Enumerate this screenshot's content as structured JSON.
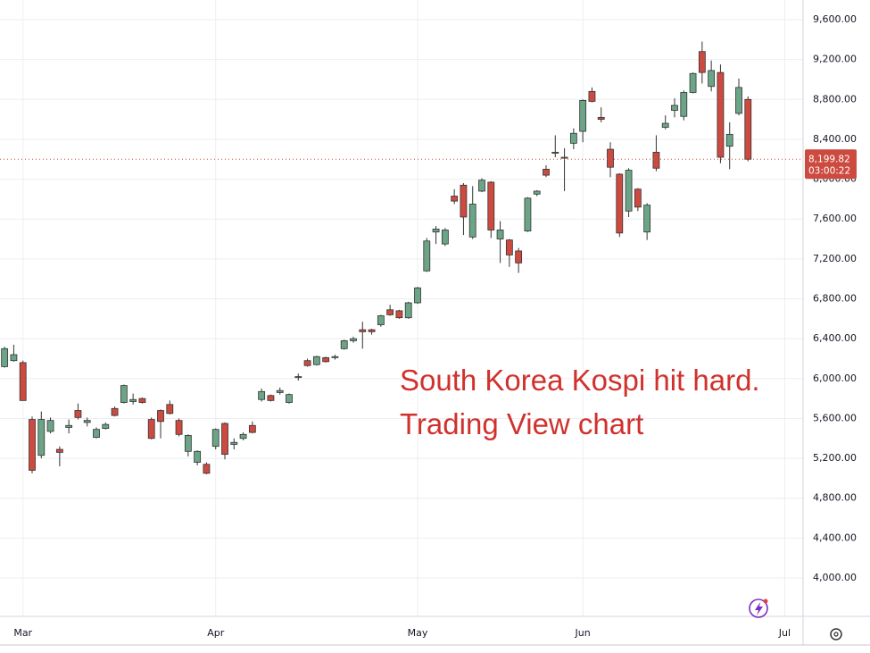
{
  "chart_data": {
    "type": "candlestick",
    "annotations": [
      "South Korea Kospi hit hard.",
      "Trading View chart"
    ],
    "up_color": "#6ba486",
    "down_color": "#cc4a3f",
    "grid": true,
    "xlim": [
      -0.5,
      87
    ],
    "xticks": [
      {
        "value": 2,
        "label": "Mar"
      },
      {
        "value": 23,
        "label": "Apr"
      },
      {
        "value": 45,
        "label": "May"
      },
      {
        "value": 63,
        "label": "Jun"
      },
      {
        "value": 85,
        "label": "Jul"
      }
    ],
    "ylim": [
      3615,
      9797
    ],
    "yticks": [
      {
        "value": 4000,
        "label": "4,000.00"
      },
      {
        "value": 4400,
        "label": "4,400.00"
      },
      {
        "value": 4800,
        "label": "4,800.00"
      },
      {
        "value": 5200,
        "label": "5,200.00"
      },
      {
        "value": 5600,
        "label": "5,600.00"
      },
      {
        "value": 6000,
        "label": "6,000.00"
      },
      {
        "value": 6400,
        "label": "6,400.00"
      },
      {
        "value": 6800,
        "label": "6,800.00"
      },
      {
        "value": 7200,
        "label": "7,200.00"
      },
      {
        "value": 7600,
        "label": "7,600.00"
      },
      {
        "value": 8000,
        "label": "8,000.00"
      },
      {
        "value": 8400,
        "label": "8,400.00"
      },
      {
        "value": 8800,
        "label": "8,800.00"
      },
      {
        "value": 9200,
        "label": "9,200.00"
      },
      {
        "value": 9600,
        "label": "9,600.00"
      }
    ],
    "last_price": {
      "value": 8199.82,
      "label": "8,199.82"
    },
    "countdown": "03:00:22",
    "open": [
      6120,
      6180,
      6160,
      5590,
      5230,
      5470,
      5290,
      5510,
      5680,
      5560,
      5410,
      5500,
      5700,
      5760,
      5770,
      5800,
      5590,
      5680,
      5740,
      5580,
      5270,
      5160,
      5140,
      5320,
      5550,
      5340,
      5400,
      5530,
      5790,
      5830,
      5860,
      5760,
      6010,
      6180,
      6140,
      6210,
      6210,
      6300,
      6380,
      6490,
      6490,
      6540,
      6690,
      6680,
      6610,
      6760,
      7080,
      7470,
      7350,
      7830,
      7940,
      7420,
      7880,
      7970,
      7400,
      7390,
      7280,
      7480,
      7850,
      8100,
      8260,
      8210,
      8360,
      8480,
      8880,
      8620,
      8300,
      8050,
      7680,
      7900,
      7470,
      8270,
      8520,
      8690,
      8630,
      8870,
      9280,
      8930,
      9070,
      8330,
      8660,
      8800
    ],
    "high": [
      6320,
      6340,
      6180,
      5620,
      5670,
      5610,
      5320,
      5590,
      5750,
      5610,
      5510,
      5560,
      5720,
      5940,
      5850,
      5810,
      5610,
      5690,
      5780,
      5600,
      5440,
      5280,
      5160,
      5500,
      5560,
      5400,
      5460,
      5570,
      5900,
      5840,
      5910,
      5850,
      6050,
      6200,
      6230,
      6220,
      6240,
      6390,
      6420,
      6570,
      6500,
      6640,
      6740,
      6690,
      6770,
      6920,
      7410,
      7530,
      7510,
      7900,
      7960,
      7930,
      8010,
      7980,
      7580,
      7400,
      7310,
      7820,
      7890,
      8140,
      8440,
      8310,
      8510,
      8800,
      8920,
      8720,
      8370,
      8060,
      8110,
      7910,
      7760,
      8440,
      8640,
      8810,
      8890,
      9070,
      9380,
      9190,
      9150,
      8570,
      9010,
      8830
    ],
    "low": [
      6110,
      6170,
      5780,
      5050,
      5200,
      5450,
      5120,
      5450,
      5590,
      5520,
      5400,
      5490,
      5620,
      5750,
      5740,
      5750,
      5390,
      5400,
      5640,
      5420,
      5220,
      5130,
      5040,
      5290,
      5190,
      5290,
      5380,
      5450,
      5770,
      5770,
      5840,
      5750,
      5980,
      6120,
      6130,
      6160,
      6190,
      6290,
      6360,
      6300,
      6440,
      6520,
      6630,
      6600,
      6600,
      6750,
      7070,
      7350,
      7330,
      7750,
      7440,
      7400,
      7870,
      7410,
      7160,
      7120,
      7060,
      7470,
      7830,
      8020,
      8220,
      7880,
      8300,
      8370,
      8770,
      8570,
      8020,
      7420,
      7620,
      7680,
      7390,
      8080,
      8500,
      8620,
      8590,
      8860,
      8960,
      8880,
      8160,
      8100,
      8640,
      8180
    ],
    "close": [
      6300,
      6240,
      5780,
      5080,
      5590,
      5580,
      5260,
      5530,
      5610,
      5580,
      5490,
      5540,
      5630,
      5930,
      5790,
      5760,
      5400,
      5570,
      5650,
      5440,
      5430,
      5270,
      5050,
      5490,
      5240,
      5360,
      5440,
      5460,
      5870,
      5780,
      5880,
      5840,
      6020,
      6130,
      6220,
      6170,
      6220,
      6380,
      6400,
      6470,
      6470,
      6630,
      6640,
      6610,
      6760,
      6910,
      7380,
      7500,
      7490,
      7780,
      7620,
      7750,
      7990,
      7490,
      7490,
      7240,
      7160,
      7810,
      7880,
      8040,
      8270,
      8220,
      8460,
      8790,
      8780,
      8600,
      8120,
      7460,
      8090,
      7720,
      7740,
      8110,
      8560,
      8740,
      8870,
      9060,
      9070,
      9090,
      8220,
      8450,
      8920,
      8199.82
    ]
  }
}
